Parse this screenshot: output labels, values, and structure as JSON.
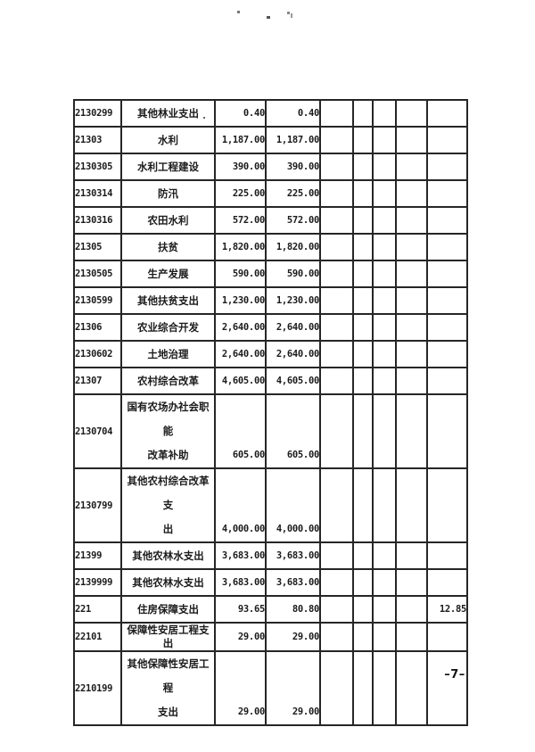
{
  "page": {
    "footer": "–7–"
  },
  "colors": {
    "ink": "#1b1b1b",
    "border": "#262626",
    "background": "#ffffff"
  },
  "table": {
    "rows": [
      {
        "code": "2130299",
        "name_lines": [
          "其他林业支出"
        ],
        "amount1": "0.40",
        "amount2": "0.40",
        "amount3": ""
      },
      {
        "code": "21303",
        "name_lines": [
          "水利"
        ],
        "amount1": "1,187.00",
        "amount2": "1,187.00",
        "amount3": ""
      },
      {
        "code": "2130305",
        "name_lines": [
          "水利工程建设"
        ],
        "amount1": "390.00",
        "amount2": "390.00",
        "amount3": ""
      },
      {
        "code": "2130314",
        "name_lines": [
          "防汛"
        ],
        "amount1": "225.00",
        "amount2": "225.00",
        "amount3": ""
      },
      {
        "code": "2130316",
        "name_lines": [
          "农田水利"
        ],
        "amount1": "572.00",
        "amount2": "572.00",
        "amount3": ""
      },
      {
        "code": "21305",
        "name_lines": [
          "扶贫"
        ],
        "amount1": "1,820.00",
        "amount2": "1,820.00",
        "amount3": ""
      },
      {
        "code": "2130505",
        "name_lines": [
          "生产发展"
        ],
        "amount1": "590.00",
        "amount2": "590.00",
        "amount3": ""
      },
      {
        "code": "2130599",
        "name_lines": [
          "其他扶贫支出"
        ],
        "amount1": "1,230.00",
        "amount2": "1,230.00",
        "amount3": ""
      },
      {
        "code": "21306",
        "name_lines": [
          "农业综合开发"
        ],
        "amount1": "2,640.00",
        "amount2": "2,640.00",
        "amount3": ""
      },
      {
        "code": "2130602",
        "name_lines": [
          "土地治理"
        ],
        "amount1": "2,640.00",
        "amount2": "2,640.00",
        "amount3": ""
      },
      {
        "code": "21307",
        "name_lines": [
          "农村综合改革"
        ],
        "amount1": "4,605.00",
        "amount2": "4,605.00",
        "amount3": ""
      },
      {
        "code": "2130704",
        "name_lines": [
          "国有农场办社会职能",
          "改革补助"
        ],
        "amount1": "605.00",
        "amount2": "605.00",
        "amount3": ""
      },
      {
        "code": "2130799",
        "name_lines": [
          "其他农村综合改革支",
          "出"
        ],
        "amount1": "4,000.00",
        "amount2": "4,000.00",
        "amount3": ""
      },
      {
        "code": "21399",
        "name_lines": [
          "其他农林水支出"
        ],
        "amount1": "3,683.00",
        "amount2": "3,683.00",
        "amount3": ""
      },
      {
        "code": "2139999",
        "name_lines": [
          "其他农林水支出"
        ],
        "amount1": "3,683.00",
        "amount2": "3,683.00",
        "amount3": ""
      },
      {
        "code": "221",
        "name_lines": [
          "住房保障支出"
        ],
        "amount1": "93.65",
        "amount2": "80.80",
        "amount3": "12.85"
      },
      {
        "code": "22101",
        "name_lines": [
          "保障性安居工程支出"
        ],
        "amount1": "29.00",
        "amount2": "29.00",
        "amount3": ""
      },
      {
        "code": "2210199",
        "name_lines": [
          "其他保障性安居工程",
          "支出"
        ],
        "amount1": "29.00",
        "amount2": "29.00",
        "amount3": ""
      }
    ]
  }
}
